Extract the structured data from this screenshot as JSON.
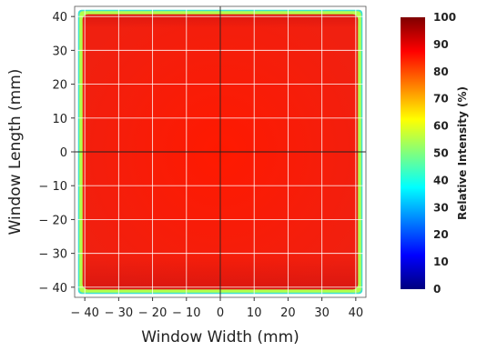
{
  "chart_data": {
    "type": "heatmap",
    "title": "",
    "xlabel": "Window Width (mm)",
    "ylabel": "Window Length (mm)",
    "xlim": [
      -43,
      43
    ],
    "ylim": [
      -43,
      43
    ],
    "x_ticks": [
      "− 40",
      "− 30",
      "− 20",
      "− 10",
      "0",
      "10",
      "20",
      "30",
      "40"
    ],
    "x_tick_values": [
      -40,
      -30,
      -20,
      -10,
      0,
      10,
      20,
      30,
      40
    ],
    "y_ticks": [
      "40",
      "30",
      "20",
      "10",
      "0",
      "− 10",
      "− 20",
      "− 30",
      "− 40"
    ],
    "y_tick_values": [
      40,
      30,
      20,
      10,
      0,
      -10,
      -20,
      -30,
      -40
    ],
    "grid": true,
    "window_extent_mm": [
      -42,
      42
    ],
    "interior_relative_intensity_pct": 85,
    "edge_relative_intensity_pct": 55,
    "colorbar": {
      "label": "Relative Intensity (%)",
      "range": [
        0,
        100
      ],
      "ticks": [
        "100",
        "90",
        "80",
        "70",
        "60",
        "50",
        "40",
        "30",
        "20",
        "10",
        "0"
      ],
      "tick_values": [
        100,
        90,
        80,
        70,
        60,
        50,
        40,
        30,
        20,
        10,
        0
      ],
      "colormap": "jet",
      "colors": [
        "#00007f",
        "#0000ff",
        "#007fff",
        "#00ffff",
        "#7fff7f",
        "#ffff00",
        "#ff7f00",
        "#ff0000",
        "#7f0000"
      ]
    },
    "colors": {
      "field": "#f02010",
      "field_dark": "#c81010",
      "edge": "#ffd000",
      "edge_outer": "#40e0d0",
      "gridline": "#ffffff",
      "crosshair": "#222222"
    }
  }
}
